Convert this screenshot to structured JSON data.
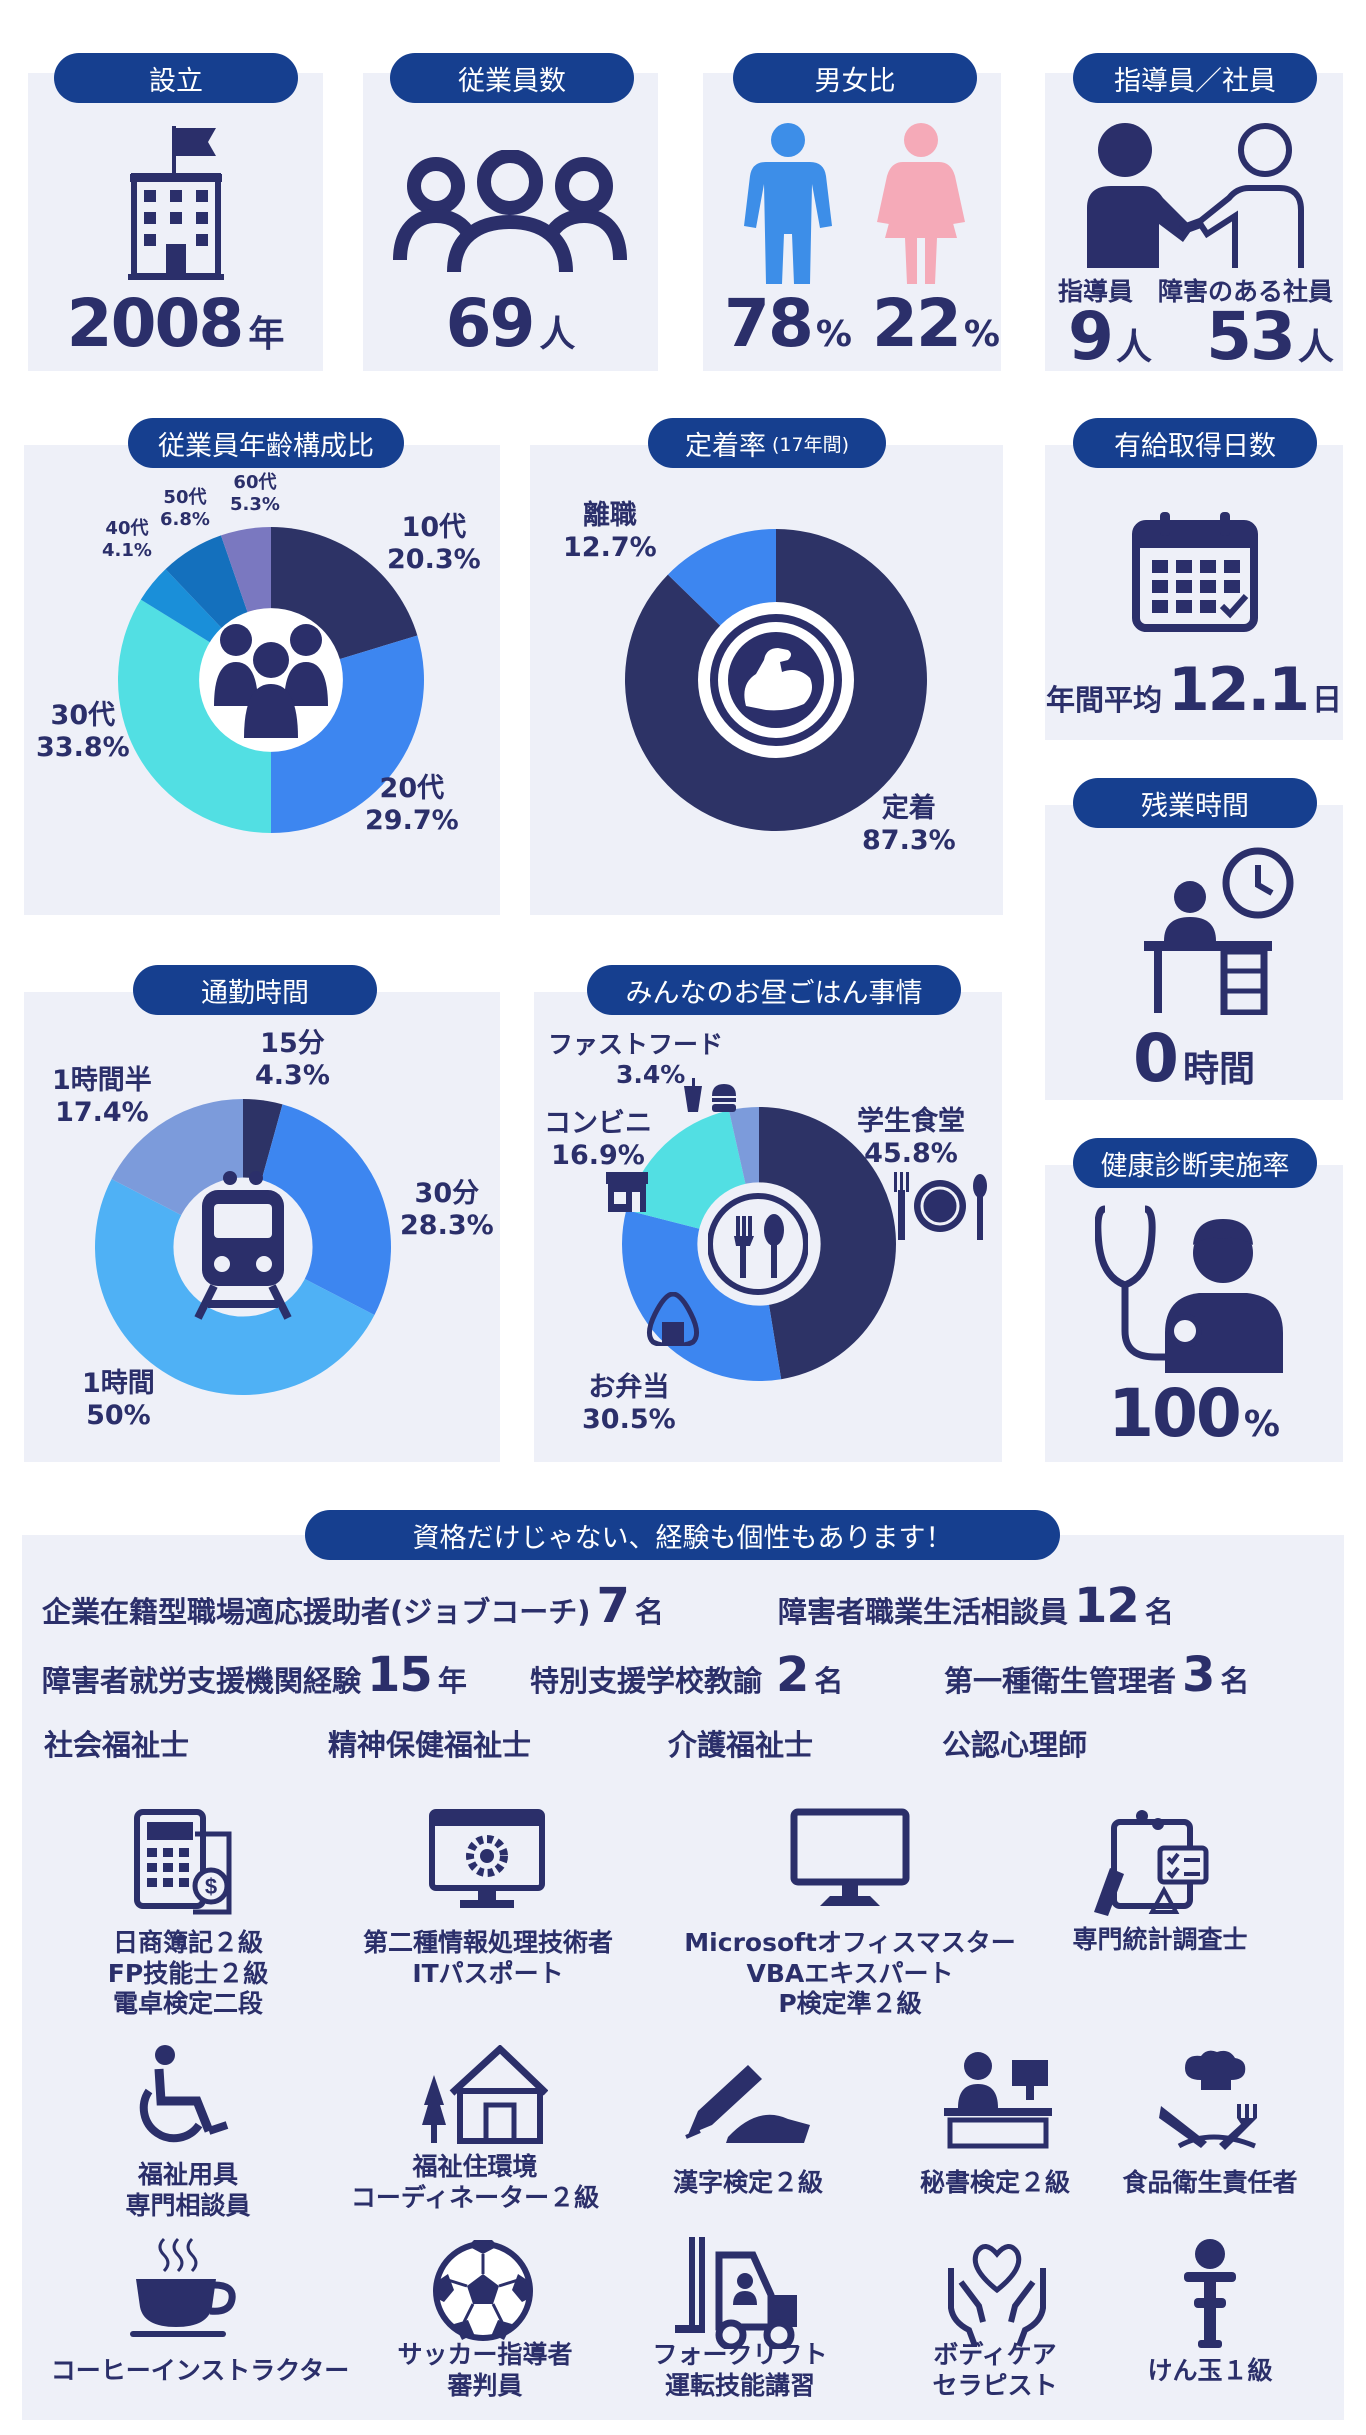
{
  "colors": {
    "navy": "#2b2f6a",
    "pill": "#163f8f",
    "panel": "#eef0f8",
    "male": "#3d8ee8",
    "female": "#f5aab8"
  },
  "founded": {
    "title": "設立",
    "value": "2008",
    "unit": "年",
    "icon": "building-icon"
  },
  "employees": {
    "title": "従業員数",
    "value": "69",
    "unit": "人",
    "icon": "people-group-icon"
  },
  "gender": {
    "title": "男女比",
    "male_value": "78",
    "female_value": "22",
    "unit": "%"
  },
  "staff": {
    "title": "指導員／社員",
    "instructor_label": "指導員",
    "instructor_value": "9",
    "instructor_unit": "人",
    "member_label": "障害のある社員",
    "member_value": "53",
    "member_unit": "人"
  },
  "age": {
    "title": "従業員年齢構成比",
    "labels": {
      "teens_name": "10代",
      "teens_pct": "20.3%",
      "twenties_name": "20代",
      "twenties_pct": "29.7%",
      "thirties_name": "30代",
      "thirties_pct": "33.8%",
      "forties_name": "40代",
      "forties_pct": "4.1%",
      "fifties_name": "50代",
      "fifties_pct": "6.8%",
      "sixties_name": "60代",
      "sixties_pct": "5.3%"
    }
  },
  "retention": {
    "title": "定着率",
    "title_note": "(17年間)",
    "leave_name": "離職",
    "leave_pct": "12.7%",
    "stay_name": "定着",
    "stay_pct": "87.3%"
  },
  "paid_leave": {
    "title": "有給取得日数",
    "prefix": "年間平均",
    "value": "12.1",
    "unit": "日"
  },
  "overtime": {
    "title": "残業時間",
    "value": "0",
    "unit": "時間"
  },
  "commute": {
    "title": "通勤時間",
    "labels": {
      "m15_name": "15分",
      "m15_pct": "4.3%",
      "m30_name": "30分",
      "m30_pct": "28.3%",
      "h1_name": "1時間",
      "h1_pct": "50%",
      "h15_name": "1時間半",
      "h15_pct": "17.4%"
    }
  },
  "lunch": {
    "title": "みんなのお昼ごはん事情",
    "labels": {
      "cafeteria_name": "学生食堂",
      "cafeteria_pct": "45.8%",
      "bento_name": "お弁当",
      "bento_pct": "30.5%",
      "konbini_name": "コンビニ",
      "konbini_pct": "16.9%",
      "fastfood_name": "ファストフード",
      "fastfood_pct": "3.4%"
    }
  },
  "health": {
    "title": "健康診断実施率",
    "value": "100",
    "unit": "%"
  },
  "chart_data": [
    {
      "type": "pie",
      "title": "従業員年齢構成比",
      "categories": [
        "10代",
        "20代",
        "30代",
        "40代",
        "50代",
        "60代"
      ],
      "values": [
        20.3,
        29.7,
        33.8,
        4.1,
        6.8,
        5.3
      ],
      "colors": [
        "#2d3366",
        "#3d86f0",
        "#52dfe3",
        "#1a8fd9",
        "#1470bd",
        "#7a78c0"
      ]
    },
    {
      "type": "pie",
      "title": "定着率",
      "categories": [
        "定着",
        "離職"
      ],
      "values": [
        87.3,
        12.7
      ],
      "colors": [
        "#2d3366",
        "#3d86f0"
      ]
    },
    {
      "type": "pie",
      "title": "通勤時間",
      "categories": [
        "15分",
        "30分",
        "1時間",
        "1時間半"
      ],
      "values": [
        4.3,
        28.3,
        50,
        17.4
      ],
      "colors": [
        "#2d3366",
        "#3d86f0",
        "#4fb1f5",
        "#7c9bdb"
      ]
    },
    {
      "type": "pie",
      "title": "みんなのお昼ごはん事情",
      "categories": [
        "学生食堂",
        "お弁当",
        "コンビニ",
        "ファストフード"
      ],
      "values": [
        45.8,
        30.5,
        16.9,
        3.4
      ],
      "colors": [
        "#2d3366",
        "#3d86f0",
        "#52dfe3",
        "#7c9bdb"
      ]
    }
  ],
  "qualifications": {
    "title": "資格だけじゃない、経験も個性もあります！",
    "row1": [
      {
        "label": "企業在籍型職場適応援助者(ジョブコーチ)",
        "value": "7",
        "unit": "名"
      },
      {
        "label": "障害者職業生活相談員",
        "value": "12",
        "unit": "名"
      }
    ],
    "row2": [
      {
        "label": "障害者就労支援機関経験",
        "value": "15",
        "unit": "年"
      },
      {
        "label": "特別支援学校教諭",
        "value": "2",
        "unit": "名"
      },
      {
        "label": "第一種衛生管理者",
        "value": "3",
        "unit": "名"
      }
    ],
    "row3": [
      "社会福祉士",
      "精神保健福祉士",
      "介護福祉士",
      "公認心理師"
    ],
    "items": [
      {
        "lines": [
          "日商簿記２級",
          "FP技能士２級",
          "電卓検定二段"
        ],
        "icon": "calculator-icon"
      },
      {
        "lines": [
          "第二種情報処理技術者",
          "ITパスポート"
        ],
        "icon": "computer-gear-icon"
      },
      {
        "lines": [
          "Microsoftオフィスマスター",
          "VBAエキスパート",
          "P検定準２級"
        ],
        "icon": "monitor-icon"
      },
      {
        "lines": [
          "専門統計調査士"
        ],
        "icon": "survey-icon"
      },
      {
        "lines": [
          "福祉用具",
          "専門相談員"
        ],
        "icon": "wheelchair-icon"
      },
      {
        "lines": [
          "福祉住環境",
          "コーディネーター２級"
        ],
        "icon": "house-icon"
      },
      {
        "lines": [
          "漢字検定２級"
        ],
        "icon": "pen-icon"
      },
      {
        "lines": [
          "秘書検定２級"
        ],
        "icon": "receptionist-icon"
      },
      {
        "lines": [
          "食品衛生責任者"
        ],
        "icon": "chef-icon"
      },
      {
        "lines": [
          "コーヒーインストラクター"
        ],
        "icon": "coffee-icon"
      },
      {
        "lines": [
          "サッカー指導者",
          "審判員"
        ],
        "icon": "soccer-ball-icon"
      },
      {
        "lines": [
          "フォークリフト",
          "運転技能講習"
        ],
        "icon": "forklift-icon"
      },
      {
        "lines": [
          "ボディケア",
          "セラピスト"
        ],
        "icon": "heart-hands-icon"
      },
      {
        "lines": [
          "けん玉１級"
        ],
        "icon": "kendama-icon"
      }
    ]
  }
}
